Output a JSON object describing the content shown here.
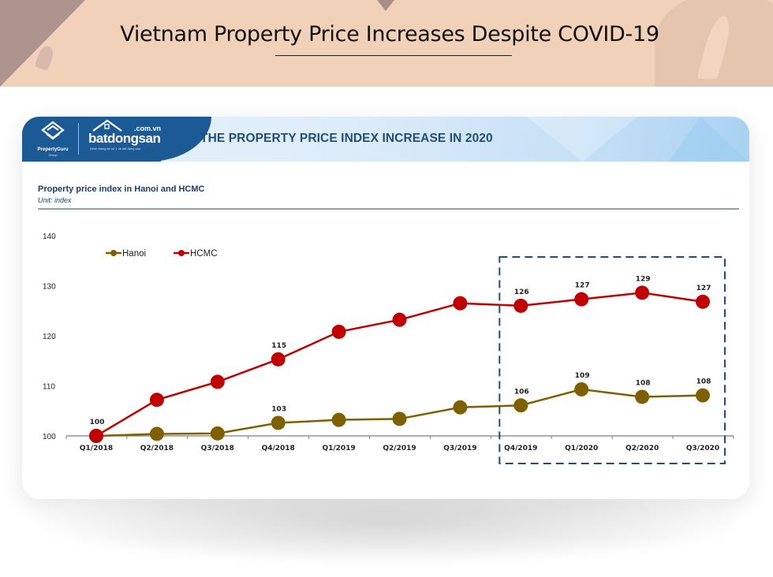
{
  "slide": {
    "title": "Vietnam Property Price Increases Despite COVID-19"
  },
  "card": {
    "title": "THE PROPERTY PRICE INDEX INCREASE IN 2020",
    "logos": {
      "propertyguru_name": "PropertyGuru",
      "propertyguru_sub": "Group",
      "bds_domain": ".com.vn",
      "bds_name": "batdongsan",
      "bds_tagline": "Kênh thông tin số 1 về bất động sản"
    },
    "brand_color": "#1c5a96",
    "title_color": "#1f4e79"
  },
  "chart_data": {
    "type": "line",
    "title": "Property price index in Hanoi and HCMC",
    "subtitle": "Unit: index",
    "xlabel": "",
    "ylabel": "",
    "ylim": [
      100,
      140
    ],
    "yticks": [
      100,
      110,
      120,
      130,
      140
    ],
    "grid": false,
    "legend_position": "top-left",
    "categories": [
      "Q1/2018",
      "Q2/2018",
      "Q3/2018",
      "Q4/2018",
      "Q1/2019",
      "Q2/2019",
      "Q3/2019",
      "Q4/2019",
      "Q1/2020",
      "Q2/2020",
      "Q3/2020"
    ],
    "series": [
      {
        "name": "Hanoi",
        "color": "#7f6000",
        "values": [
          100,
          100.4,
          100.5,
          102.6,
          103.2,
          103.4,
          105.7,
          106.1,
          109.3,
          107.8,
          108.1
        ],
        "labels": {
          "3": "103",
          "7": "106",
          "8": "109",
          "9": "108",
          "10": "108"
        }
      },
      {
        "name": "HCMC",
        "color": "#c00000",
        "values": [
          100,
          107.2,
          110.8,
          115.3,
          120.8,
          123.2,
          126.5,
          126.0,
          127.3,
          128.6,
          126.8
        ],
        "labels": {
          "0": "100",
          "3": "115",
          "7": "126",
          "8": "127",
          "9": "129",
          "10": "127"
        }
      }
    ],
    "annotations": [
      {
        "type": "dashed-box",
        "from": "Q4/2019",
        "to": "Q3/2020",
        "color": "#1f4e79"
      }
    ]
  }
}
